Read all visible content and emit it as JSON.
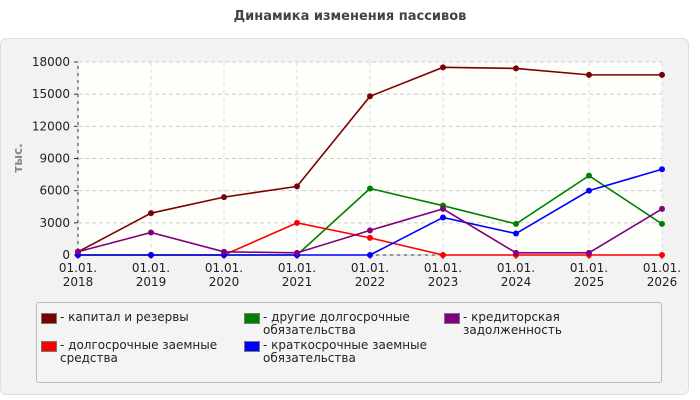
{
  "chart_data": {
    "type": "line",
    "title": "Динамика изменения пассивов",
    "ylabel": "тыс.",
    "categories": [
      "01.01. 2018",
      "01.01. 2019",
      "01.01. 2020",
      "01.01. 2021",
      "01.01. 2022",
      "01.01. 2023",
      "01.01. 2024",
      "01.01. 2025",
      "01.01. 2026"
    ],
    "series": [
      {
        "name": "- капитал и резервы",
        "color": "#7b0000",
        "values": [
          300,
          3900,
          5400,
          6400,
          14800,
          17500,
          17400,
          16800,
          16800
        ]
      },
      {
        "name": "- долгосрочные заемные средства",
        "color": "#ff0000",
        "values": [
          0,
          0,
          0,
          3000,
          1600,
          0,
          0,
          0,
          0
        ]
      },
      {
        "name": "- другие долгосрочные обязательства",
        "color": "#008000",
        "values": [
          0,
          0,
          0,
          0,
          6200,
          4600,
          2900,
          7400,
          2900
        ]
      },
      {
        "name": "- краткосрочные заемные обязательства",
        "color": "#0000ff",
        "values": [
          0,
          0,
          0,
          0,
          0,
          3500,
          2000,
          6000,
          8000
        ]
      },
      {
        "name": "- кредиторская задолженность",
        "color": "#800080",
        "values": [
          300,
          2100,
          300,
          200,
          2300,
          4300,
          200,
          200,
          4300
        ]
      }
    ],
    "ylim": [
      0,
      18000
    ],
    "yticks": [
      0,
      3000,
      6000,
      9000,
      12000,
      15000,
      18000
    ],
    "grid": true
  }
}
